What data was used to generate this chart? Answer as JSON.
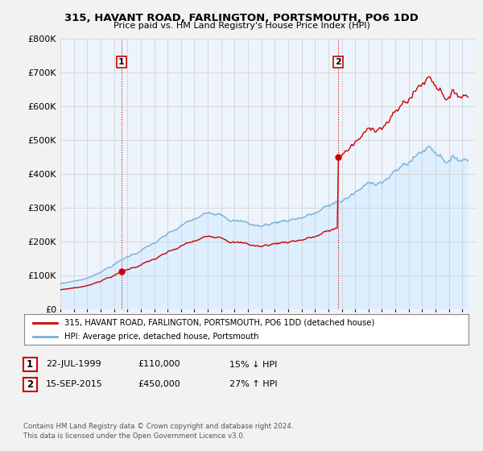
{
  "title": "315, HAVANT ROAD, FARLINGTON, PORTSMOUTH, PO6 1DD",
  "subtitle": "Price paid vs. HM Land Registry's House Price Index (HPI)",
  "sale1_date": "22-JUL-1999",
  "sale1_price": 110000,
  "sale2_date": "15-SEP-2015",
  "sale2_price": 450000,
  "sale1_pct": "15% ↓ HPI",
  "sale2_pct": "27% ↑ HPI",
  "legend_line1": "315, HAVANT ROAD, FARLINGTON, PORTSMOUTH, PO6 1DD (detached house)",
  "legend_line2": "HPI: Average price, detached house, Portsmouth",
  "footer": "Contains HM Land Registry data © Crown copyright and database right 2024.\nThis data is licensed under the Open Government Licence v3.0.",
  "sale_color": "#cc0000",
  "hpi_color": "#7ab0d4",
  "hpi_fill_color": "#ddeeff",
  "background_color": "#f2f2f2",
  "plot_bg_color": "#eef4fb",
  "grid_color": "#cccccc",
  "ylim": [
    0,
    800000
  ],
  "yticks": [
    0,
    100000,
    200000,
    300000,
    400000,
    500000,
    600000,
    700000,
    800000
  ],
  "xstart": 1995,
  "xend": 2026,
  "sale1_year_f": 1999.55,
  "sale2_year_f": 2015.71
}
